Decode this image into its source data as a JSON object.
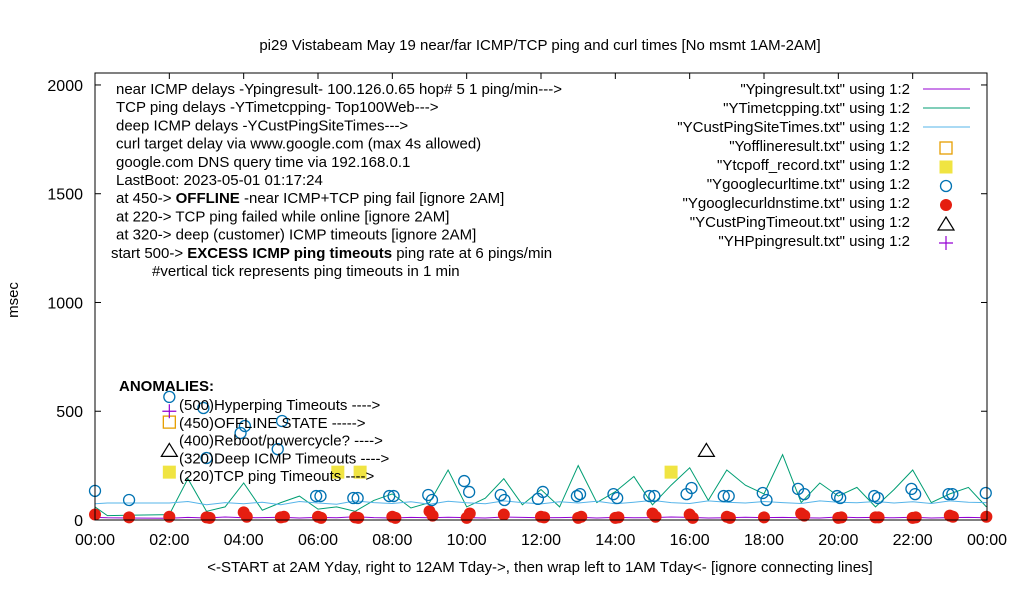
{
  "chart_data": {
    "type": "line",
    "title": "pi29 Vistabeam May 19  near/far ICMP/TCP ping and curl times [No msmt 1AM-2AM]",
    "xlabel": "<-START at 2AM Yday, right to 12AM Tday->, then wrap left to 1AM Tday<- [ignore connecting lines]",
    "ylabel": "msec",
    "xlim": [
      "00:00",
      "24:00"
    ],
    "ylim": [
      0,
      2055
    ],
    "xticks": [
      "00:00",
      "02:00",
      "04:00",
      "06:00",
      "08:00",
      "10:00",
      "12:00",
      "14:00",
      "16:00",
      "18:00",
      "20:00",
      "22:00",
      "00:00"
    ],
    "yticks": [
      0,
      500,
      1000,
      1500,
      2000
    ],
    "grid": false,
    "legend_placement": "top-right",
    "annotations": {
      "info": [
        {
          "text": "near ICMP delays -Ypingresult- 100.126.0.65 hop# 5 1 ping/min--->"
        },
        {
          "text": "TCP ping delays -YTimetcpping- Top100Web--->"
        },
        {
          "text": "deep ICMP delays -YCustPingSiteTimes--->"
        },
        {
          "text": "curl target delay via www.google.com (max 4s allowed)"
        },
        {
          "text": "google.com DNS query time via 192.168.0.1"
        },
        {
          "text": "LastBoot: 2023-05-01 01:17:24"
        },
        {
          "pre": "at 450->  ",
          "bold": "OFFLINE",
          "post": " -near ICMP+TCP ping fail [ignore 2AM]"
        },
        {
          "text": "at 220-> TCP ping failed while online [ignore 2AM]"
        },
        {
          "text": "at 320-> deep (customer) ICMP timeouts [ignore 2AM]"
        },
        {
          "pre": "start 500->  ",
          "bold": "EXCESS ICMP ping timeouts",
          "post": "  ping rate at 6 pings/min"
        },
        {
          "text": "#vertical tick represents ping timeouts in 1 min"
        }
      ],
      "anomalies_title": "ANOMALIES:",
      "anomalies": [
        "(500)Hyperping Timeouts ---->",
        "(450)OFFLINE STATE ----->",
        "(400)Reboot/powercycle? ---->",
        "(320)Deep ICMP Timeouts ---->",
        "(220)TCP ping Timeouts ---->"
      ]
    },
    "line_times": [
      "00:00",
      "00:20",
      "02:00",
      "02:30",
      "03:00",
      "03:30",
      "04:00",
      "04:30",
      "05:00",
      "05:30",
      "06:00",
      "06:30",
      "07:00",
      "07:30",
      "08:00",
      "08:30",
      "09:00",
      "09:30",
      "10:00",
      "10:30",
      "11:00",
      "11:30",
      "12:00",
      "12:30",
      "13:00",
      "13:30",
      "14:00",
      "14:30",
      "15:00",
      "15:30",
      "16:00",
      "16:30",
      "17:00",
      "17:30",
      "18:00",
      "18:30",
      "19:00",
      "19:30",
      "20:00",
      "20:30",
      "21:00",
      "21:30",
      "22:00",
      "22:30",
      "23:00",
      "23:30",
      "23:59"
    ],
    "series": [
      {
        "name": "\"Ypingresult.txt\" using 1:2",
        "kind": "line",
        "color": "#9400d3",
        "values": [
          12,
          10,
          8,
          12,
          9,
          14,
          10,
          11,
          13,
          9,
          12,
          10,
          15,
          11,
          9,
          12,
          10,
          13,
          11,
          9,
          14,
          12,
          10,
          11,
          13,
          9,
          12,
          10,
          11,
          14,
          12,
          9,
          10,
          13,
          11,
          12,
          10,
          9,
          14,
          11,
          12,
          10,
          13,
          9,
          11,
          12,
          10
        ]
      },
      {
        "name": "\"YTimetcpping.txt\" using 1:2",
        "kind": "line",
        "color": "#009e73",
        "values": [
          60,
          20,
          25,
          190,
          40,
          60,
          170,
          45,
          80,
          110,
          50,
          60,
          40,
          90,
          120,
          55,
          80,
          230,
          60,
          100,
          190,
          70,
          140,
          60,
          250,
          80,
          130,
          200,
          70,
          160,
          240,
          90,
          230,
          160,
          120,
          300,
          80,
          170,
          110,
          150,
          60,
          140,
          230,
          80,
          120,
          150,
          60
        ]
      },
      {
        "name": "\"YCustPingSiteTimes.txt\" using 1:2",
        "kind": "line",
        "color": "#56b4e9",
        "values": [
          75,
          78,
          78,
          85,
          70,
          80,
          75,
          82,
          70,
          85,
          78,
          72,
          88,
          80,
          76,
          84,
          72,
          86,
          79,
          75,
          88,
          80,
          74,
          84,
          78,
          86,
          75,
          82,
          90,
          80,
          76,
          88,
          82,
          78,
          85,
          80,
          76,
          88,
          82,
          79,
          85,
          78,
          84,
          76,
          88,
          82,
          80
        ]
      },
      {
        "name": "\"Yofflineresult.txt\" using 1:2",
        "kind": "open-square",
        "color": "#e69f00",
        "points": [
          [
            "02:00",
            450
          ]
        ]
      },
      {
        "name": "\"Ytcpoff_record.txt\" using 1:2",
        "kind": "filled-square",
        "color": "#f0e442",
        "points": [
          [
            "02:00",
            220
          ],
          [
            "06:32",
            220
          ],
          [
            "07:08",
            220
          ],
          [
            "15:30",
            220
          ]
        ]
      },
      {
        "name": "\"Ygooglecurltime.txt\" using 1:2",
        "kind": "open-circle",
        "color": "#0072b2",
        "points": [
          [
            "00:00",
            134
          ],
          [
            "00:55",
            92
          ],
          [
            "02:00",
            566
          ],
          [
            "02:55",
            515
          ],
          [
            "03:00",
            285
          ],
          [
            "03:55",
            400
          ],
          [
            "04:02",
            432
          ],
          [
            "04:55",
            326
          ],
          [
            "05:02",
            455
          ],
          [
            "05:57",
            110
          ],
          [
            "06:04",
            110
          ],
          [
            "06:57",
            101
          ],
          [
            "07:04",
            101
          ],
          [
            "07:55",
            110
          ],
          [
            "08:02",
            110
          ],
          [
            "08:58",
            115
          ],
          [
            "09:04",
            92
          ],
          [
            "09:56",
            179
          ],
          [
            "10:04",
            129
          ],
          [
            "10:55",
            115
          ],
          [
            "11:01",
            92
          ],
          [
            "11:55",
            97
          ],
          [
            "12:03",
            129
          ],
          [
            "12:58",
            110
          ],
          [
            "13:03",
            119
          ],
          [
            "13:57",
            119
          ],
          [
            "14:03",
            101
          ],
          [
            "14:55",
            110
          ],
          [
            "15:03",
            110
          ],
          [
            "15:55",
            119
          ],
          [
            "16:03",
            147
          ],
          [
            "16:55",
            110
          ],
          [
            "17:03",
            110
          ],
          [
            "17:58",
            124
          ],
          [
            "18:04",
            92
          ],
          [
            "18:55",
            143
          ],
          [
            "19:05",
            119
          ],
          [
            "19:58",
            110
          ],
          [
            "20:03",
            101
          ],
          [
            "20:58",
            110
          ],
          [
            "21:04",
            101
          ],
          [
            "21:58",
            143
          ],
          [
            "22:04",
            119
          ],
          [
            "22:58",
            119
          ],
          [
            "23:04",
            119
          ],
          [
            "23:58",
            124
          ]
        ]
      },
      {
        "name": "\"Ygooglecurldnstime.txt\" using 1:2",
        "kind": "filled-circle",
        "color": "#e51e10",
        "points": [
          [
            "00:00",
            25
          ],
          [
            "00:55",
            12
          ],
          [
            "02:00",
            15
          ],
          [
            "03:00",
            12
          ],
          [
            "03:05",
            10
          ],
          [
            "04:00",
            35
          ],
          [
            "04:05",
            15
          ],
          [
            "05:00",
            12
          ],
          [
            "05:05",
            15
          ],
          [
            "06:00",
            15
          ],
          [
            "06:05",
            10
          ],
          [
            "07:00",
            12
          ],
          [
            "07:05",
            10
          ],
          [
            "08:00",
            15
          ],
          [
            "08:05",
            10
          ],
          [
            "09:00",
            40
          ],
          [
            "09:05",
            20
          ],
          [
            "10:00",
            10
          ],
          [
            "10:05",
            30
          ],
          [
            "11:00",
            25
          ],
          [
            "12:00",
            15
          ],
          [
            "12:05",
            12
          ],
          [
            "13:00",
            10
          ],
          [
            "13:05",
            15
          ],
          [
            "14:00",
            10
          ],
          [
            "14:05",
            12
          ],
          [
            "15:00",
            30
          ],
          [
            "15:05",
            15
          ],
          [
            "16:00",
            25
          ],
          [
            "16:05",
            10
          ],
          [
            "17:00",
            15
          ],
          [
            "17:05",
            10
          ],
          [
            "18:00",
            12
          ],
          [
            "19:00",
            30
          ],
          [
            "19:05",
            20
          ],
          [
            "20:00",
            10
          ],
          [
            "20:05",
            12
          ],
          [
            "21:00",
            12
          ],
          [
            "21:05",
            12
          ],
          [
            "22:00",
            10
          ],
          [
            "22:05",
            12
          ],
          [
            "23:00",
            20
          ],
          [
            "23:05",
            15
          ],
          [
            "23:59",
            15
          ]
        ]
      },
      {
        "name": "\"YCustPingTimeout.txt\" using 1:2",
        "kind": "open-triangle",
        "color": "#000000",
        "points": [
          [
            "02:00",
            320
          ],
          [
            "16:27",
            320
          ]
        ]
      },
      {
        "name": "\"YHPpingresult.txt\" using 1:2",
        "kind": "plus",
        "color": "#9400d3",
        "points": [
          [
            "02:00",
            500
          ]
        ]
      }
    ]
  }
}
